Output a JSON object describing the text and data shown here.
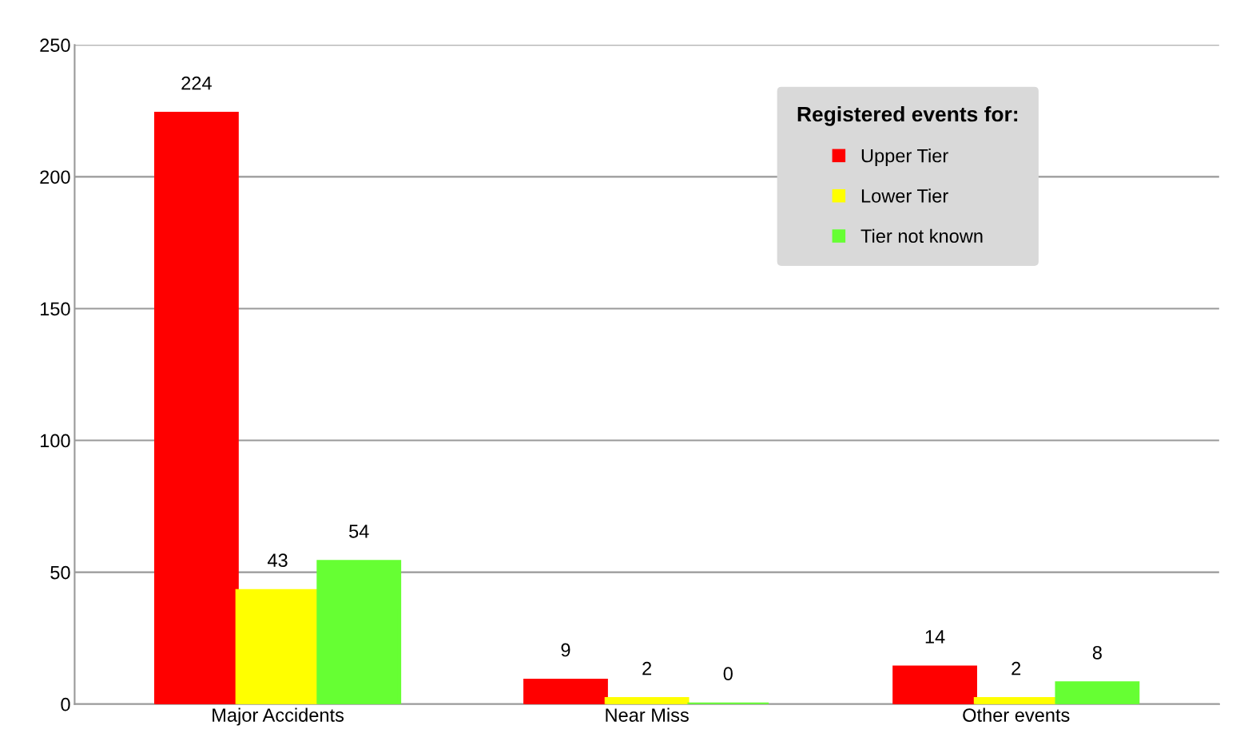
{
  "chart_data": {
    "type": "bar",
    "legend_title": "Registered events for:",
    "categories": [
      "Major Accidents",
      "Near Miss",
      "Other events"
    ],
    "series": [
      {
        "name": "Upper Tier",
        "color": "#ff0000",
        "values": [
          224,
          9,
          14
        ]
      },
      {
        "name": "Lower Tier",
        "color": "#ffff00",
        "values": [
          43,
          2,
          2
        ]
      },
      {
        "name": "Tier not known",
        "color": "#66ff33",
        "values": [
          54,
          0,
          8
        ]
      }
    ],
    "ylim": [
      0,
      250
    ],
    "yticks": [
      0,
      50,
      100,
      150,
      200,
      250
    ],
    "grid": "y",
    "legend": "top right",
    "data_labels": true
  }
}
